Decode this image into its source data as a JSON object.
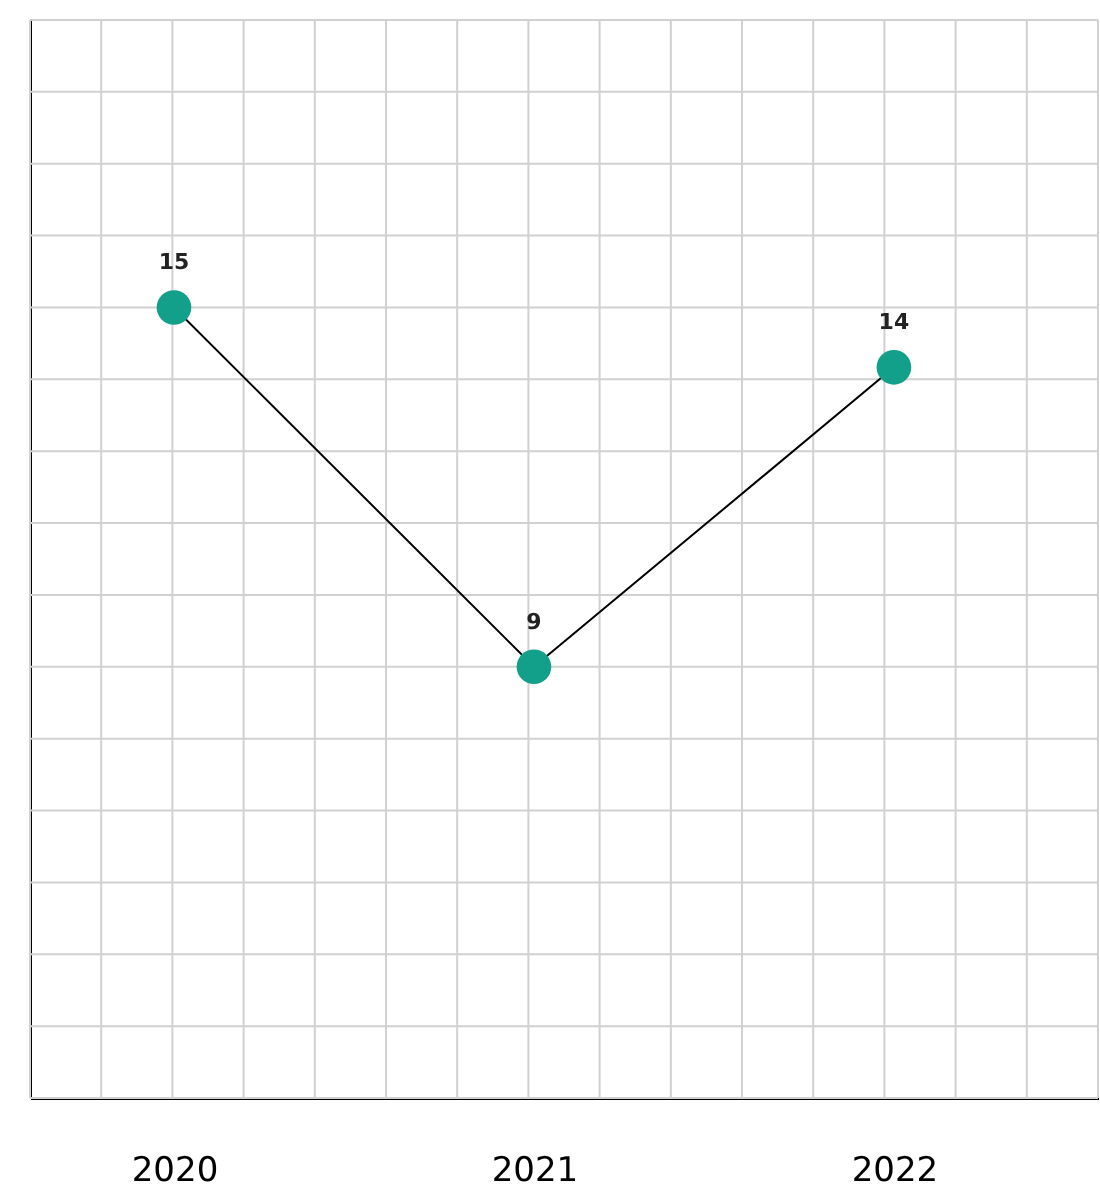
{
  "chart_data": {
    "type": "line",
    "categories": [
      "2020",
      "2021",
      "2022"
    ],
    "series": [
      {
        "color": "#12a08a",
        "values": [
          15,
          9,
          14
        ]
      }
    ],
    "data_labels": true,
    "marker": "circle",
    "grid": true,
    "tick_labels": "x"
  }
}
